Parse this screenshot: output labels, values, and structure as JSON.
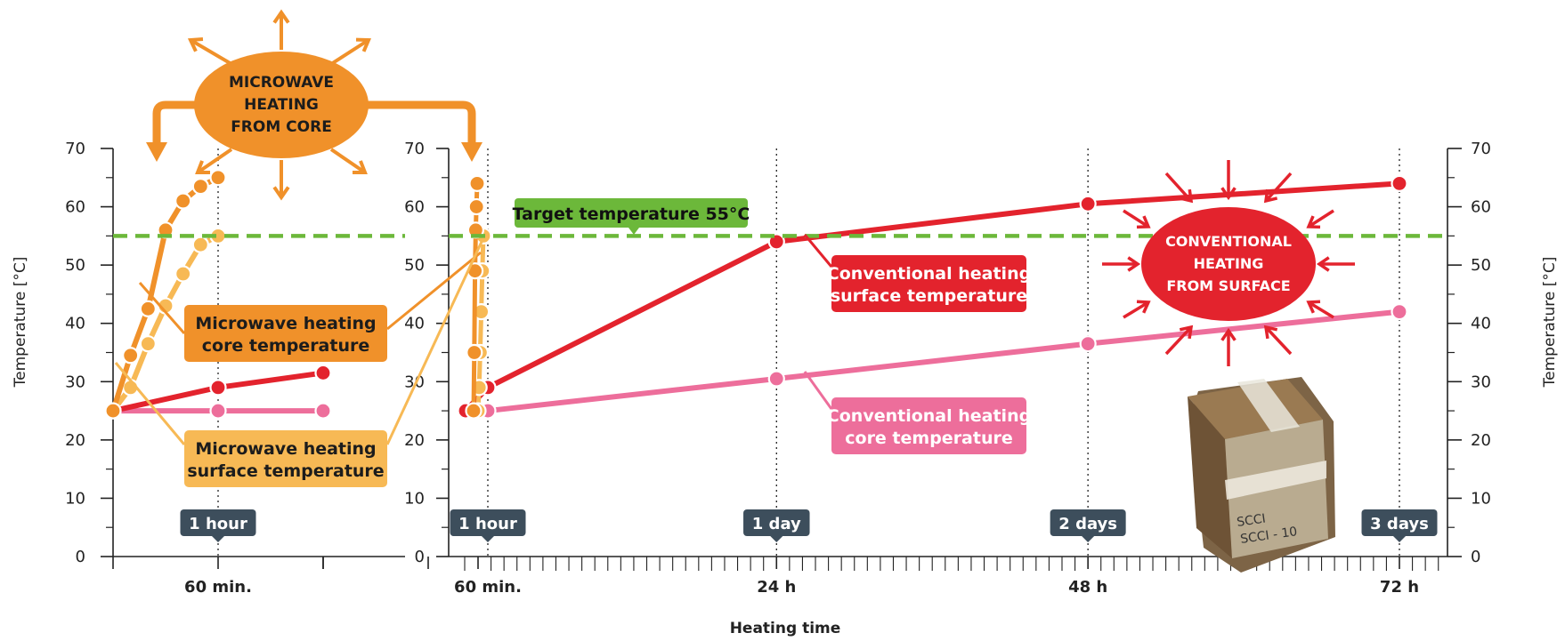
{
  "chart_data": [
    {
      "type": "line",
      "panel": "left",
      "ylabel": "Temperature [°C]",
      "ylim": [
        0,
        70
      ],
      "y_ticks": [
        "0",
        "10",
        "20",
        "30",
        "40",
        "50",
        "60",
        "70"
      ],
      "xlim_minutes": [
        0,
        120
      ],
      "x_tick_labels": [
        {
          "x": 60,
          "label": "60 min."
        }
      ],
      "time_markers": [
        {
          "x": 60,
          "label": "1 hour"
        }
      ],
      "series": [
        {
          "name": "Microwave heating core temperature",
          "color": "#f0912a",
          "x": [
            0,
            10,
            20,
            30,
            40,
            50,
            60
          ],
          "y": [
            25,
            34.5,
            42.5,
            56,
            61,
            63.5,
            65
          ]
        },
        {
          "name": "Microwave heating surface temperature",
          "color": "#f7b955",
          "x": [
            0,
            10,
            20,
            30,
            40,
            50,
            60
          ],
          "y": [
            25,
            29,
            36.5,
            43,
            48.5,
            53.5,
            55
          ]
        },
        {
          "name": "Conventional heating surface temperature",
          "color": "#e3232d",
          "x": [
            0,
            60,
            120
          ],
          "y": [
            25,
            29,
            31.5
          ]
        },
        {
          "name": "Conventional heating core temperature",
          "color": "#ed6e9b",
          "x": [
            0,
            60,
            120
          ],
          "y": [
            25,
            25,
            25
          ]
        }
      ]
    },
    {
      "type": "line",
      "panel": "right",
      "xlabel": "Heating time",
      "ylabel": "Temperature [°C]",
      "ylim": [
        0,
        70
      ],
      "y_ticks": [
        "0",
        "10",
        "20",
        "30",
        "40",
        "50",
        "60",
        "70"
      ],
      "xlim_hours": [
        0,
        75
      ],
      "x_tick_labels": [
        {
          "x": 1,
          "label": "60 min."
        },
        {
          "x": 24,
          "label": "24 h"
        },
        {
          "x": 48,
          "label": "48 h"
        },
        {
          "x": 72,
          "label": "72 h"
        }
      ],
      "time_markers": [
        {
          "x": 1,
          "label": "1 hour"
        },
        {
          "x": 24,
          "label": "1 day"
        },
        {
          "x": 48,
          "label": "2 days"
        },
        {
          "x": 72,
          "label": "3 days"
        }
      ],
      "target_line": {
        "y": 55,
        "label": "Target temperature 55°C",
        "color": "#6cb83a"
      },
      "series": [
        {
          "name": "Conventional heating surface temperature",
          "color": "#e3232d",
          "x": [
            0,
            1,
            24,
            48,
            72
          ],
          "y": [
            25,
            29,
            54,
            60.5,
            64
          ]
        },
        {
          "name": "Conventional heating core temperature",
          "color": "#ed6e9b",
          "x": [
            0,
            1,
            24,
            48,
            72
          ],
          "y": [
            25,
            25,
            30.5,
            36.5,
            42
          ]
        },
        {
          "name": "Microwave heating core temperature",
          "color": "#f0912a",
          "x": [
            0,
            0.2,
            0.4,
            0.6,
            0.8,
            1
          ],
          "y": [
            25,
            35,
            49,
            56,
            60,
            64
          ]
        },
        {
          "name": "Microwave heating surface temperature",
          "color": "#f7b955",
          "x": [
            0,
            0.2,
            0.4,
            0.6,
            0.8,
            1
          ],
          "y": [
            25,
            29,
            35,
            42,
            49,
            55
          ]
        }
      ]
    }
  ],
  "callouts": {
    "mw_core": [
      "Microwave heating",
      "core temperature"
    ],
    "mw_surface": [
      "Microwave heating",
      "surface temperature"
    ],
    "conv_surface": [
      "Conventional heating",
      "surface temperature"
    ],
    "conv_core": [
      "Conventional heating",
      "core temperature"
    ],
    "target": "Target temperature 55°C"
  },
  "badges": {
    "microwave": [
      "MICROWAVE",
      "HEATING",
      "FROM CORE"
    ],
    "conventional": [
      "CONVENTIONAL",
      "HEATING",
      "FROM SURFACE"
    ]
  },
  "xlabel": "Heating time",
  "ylabel_left": "Temperature [°C]",
  "ylabel_right": "Temperature [°C]",
  "colors": {
    "mw_core": "#f0912a",
    "mw_surface": "#f7b955",
    "conv_surface": "#e3232d",
    "conv_core": "#ed6e9b",
    "target": "#6cb83a",
    "marker_box": "#3d4e5c"
  },
  "photo": {
    "icon": "photo-bale-of-documents",
    "label_fragments": [
      "SCCI",
      "SCCI - 10"
    ]
  }
}
